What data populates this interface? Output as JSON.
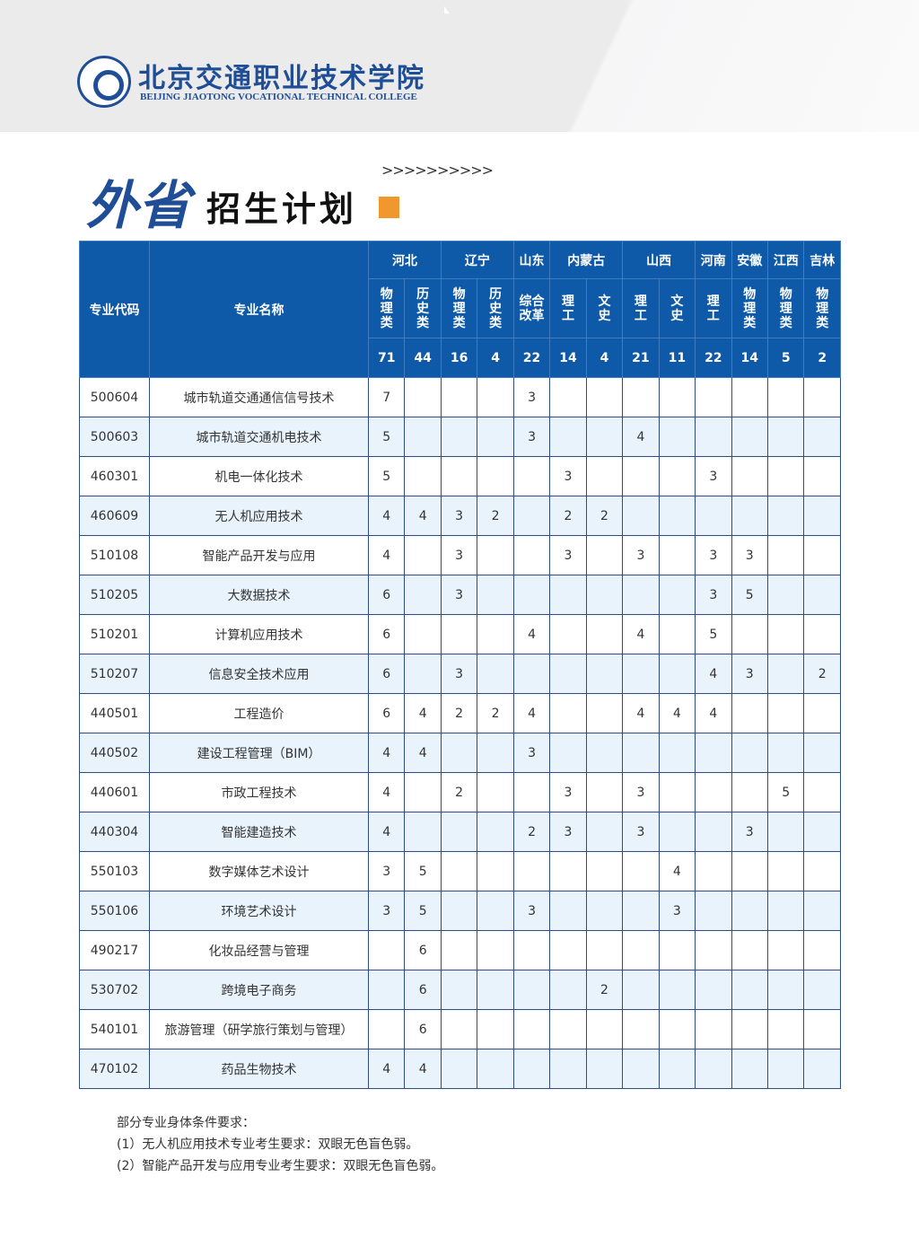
{
  "header": {
    "school_cn": "北京交通职业技术学院",
    "school_en": "BEIJING JIAOTONG VOCATIONAL TECHNICAL COLLEGE",
    "title_main": "外省",
    "title_sub": "招生计划",
    "arrows": ">>>>>>>>>>",
    "accent": "#f0982d",
    "brand": "#0f5aa8"
  },
  "table": {
    "col_code": "专业代码",
    "col_name": "专业名称",
    "provinces": [
      {
        "name": "河北",
        "span": 2
      },
      {
        "name": "辽宁",
        "span": 2
      },
      {
        "name": "山东",
        "span": 1
      },
      {
        "name": "内蒙古",
        "span": 2
      },
      {
        "name": "山西",
        "span": 2
      },
      {
        "name": "河南",
        "span": 1
      },
      {
        "name": "安徽",
        "span": 1
      },
      {
        "name": "江西",
        "span": 1
      },
      {
        "name": "吉林",
        "span": 1
      }
    ],
    "subjects": [
      "物理类",
      "历史类",
      "物理类",
      "历史类",
      "综合改革",
      "理工",
      "文史",
      "理工",
      "文史",
      "理工",
      "物理类",
      "物理类",
      "物理类"
    ],
    "totals": [
      "71",
      "44",
      "16",
      "4",
      "22",
      "14",
      "4",
      "21",
      "11",
      "22",
      "14",
      "5",
      "2"
    ],
    "rows": [
      {
        "code": "500604",
        "name": "城市轨道交通通信信号技术",
        "v": [
          "7",
          "",
          "",
          "",
          "3",
          "",
          "",
          "",
          "",
          "",
          "",
          "",
          ""
        ]
      },
      {
        "code": "500603",
        "name": "城市轨道交通机电技术",
        "v": [
          "5",
          "",
          "",
          "",
          "3",
          "",
          "",
          "4",
          "",
          "",
          "",
          "",
          ""
        ]
      },
      {
        "code": "460301",
        "name": "机电一体化技术",
        "v": [
          "5",
          "",
          "",
          "",
          "",
          "3",
          "",
          "",
          "",
          "3",
          "",
          "",
          ""
        ]
      },
      {
        "code": "460609",
        "name": "无人机应用技术",
        "v": [
          "4",
          "4",
          "3",
          "2",
          "",
          "2",
          "2",
          "",
          "",
          "",
          "",
          "",
          ""
        ]
      },
      {
        "code": "510108",
        "name": "智能产品开发与应用",
        "v": [
          "4",
          "",
          "3",
          "",
          "",
          "3",
          "",
          "3",
          "",
          "3",
          "3",
          "",
          ""
        ]
      },
      {
        "code": "510205",
        "name": "大数据技术",
        "v": [
          "6",
          "",
          "3",
          "",
          "",
          "",
          "",
          "",
          "",
          "3",
          "5",
          "",
          ""
        ]
      },
      {
        "code": "510201",
        "name": "计算机应用技术",
        "v": [
          "6",
          "",
          "",
          "",
          "4",
          "",
          "",
          "4",
          "",
          "5",
          "",
          "",
          ""
        ]
      },
      {
        "code": "510207",
        "name": "信息安全技术应用",
        "v": [
          "6",
          "",
          "3",
          "",
          "",
          "",
          "",
          "",
          "",
          "4",
          "3",
          "",
          "2"
        ]
      },
      {
        "code": "440501",
        "name": "工程造价",
        "v": [
          "6",
          "4",
          "2",
          "2",
          "4",
          "",
          "",
          "4",
          "4",
          "4",
          "",
          "",
          ""
        ]
      },
      {
        "code": "440502",
        "name": "建设工程管理（BIM）",
        "v": [
          "4",
          "4",
          "",
          "",
          "3",
          "",
          "",
          "",
          "",
          "",
          "",
          "",
          ""
        ]
      },
      {
        "code": "440601",
        "name": "市政工程技术",
        "v": [
          "4",
          "",
          "2",
          "",
          "",
          "3",
          "",
          "3",
          "",
          "",
          "",
          "5",
          ""
        ]
      },
      {
        "code": "440304",
        "name": "智能建造技术",
        "v": [
          "4",
          "",
          "",
          "",
          "2",
          "3",
          "",
          "3",
          "",
          "",
          "3",
          "",
          ""
        ]
      },
      {
        "code": "550103",
        "name": "数字媒体艺术设计",
        "v": [
          "3",
          "5",
          "",
          "",
          "",
          "",
          "",
          "",
          "4",
          "",
          "",
          "",
          ""
        ]
      },
      {
        "code": "550106",
        "name": "环境艺术设计",
        "v": [
          "3",
          "5",
          "",
          "",
          "3",
          "",
          "",
          "",
          "3",
          "",
          "",
          "",
          ""
        ]
      },
      {
        "code": "490217",
        "name": "化妆品经营与管理",
        "v": [
          "",
          "6",
          "",
          "",
          "",
          "",
          "",
          "",
          "",
          "",
          "",
          "",
          ""
        ]
      },
      {
        "code": "530702",
        "name": "跨境电子商务",
        "v": [
          "",
          "6",
          "",
          "",
          "",
          "",
          "2",
          "",
          "",
          "",
          "",
          "",
          ""
        ]
      },
      {
        "code": "540101",
        "name": "旅游管理（研学旅行策划与管理）",
        "v": [
          "",
          "6",
          "",
          "",
          "",
          "",
          "",
          "",
          "",
          "",
          "",
          "",
          ""
        ]
      },
      {
        "code": "470102",
        "name": "药品生物技术",
        "v": [
          "4",
          "4",
          "",
          "",
          "",
          "",
          "",
          "",
          "",
          "",
          "",
          "",
          ""
        ]
      }
    ]
  },
  "notes": [
    "部分专业身体条件要求：",
    "(1）无人机应用技术专业考生要求：双眼无色盲色弱。",
    "(2）智能产品开发与应用专业考生要求：双眼无色盲色弱。"
  ]
}
